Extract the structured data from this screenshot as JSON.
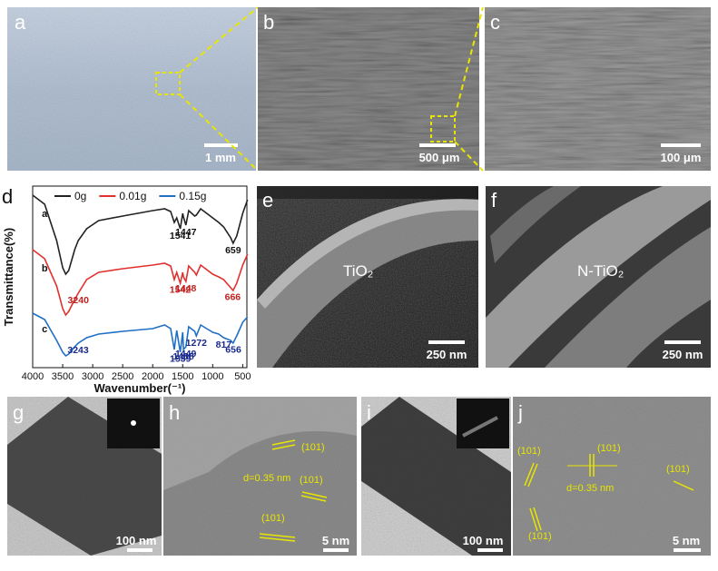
{
  "panels": [
    {
      "letter": "a",
      "scale_bar": "1 mm"
    },
    {
      "letter": "b",
      "scale_bar": "500 μm"
    },
    {
      "letter": "c",
      "scale_bar": "100 μm"
    },
    {
      "letter": "d"
    },
    {
      "letter": "e",
      "label": "TiO₂",
      "scale_bar": "250 nm"
    },
    {
      "letter": "f",
      "label": "N-TiO₂",
      "scale_bar": "250 nm"
    },
    {
      "letter": "g",
      "scale_bar": "100 nm"
    },
    {
      "letter": "h",
      "scale_bar": "5 nm",
      "labels": [
        "(101)",
        "d=0.35 nm",
        "(101)",
        "(101)"
      ]
    },
    {
      "letter": "i",
      "scale_bar": "100 nm"
    },
    {
      "letter": "j",
      "scale_bar": "5 nm",
      "labels": [
        "(101)",
        "(101)",
        "d=0.35 nm",
        "(101)",
        "(101)"
      ]
    }
  ],
  "chart_data": {
    "type": "line",
    "xlabel": "Wavenumber(⁻¹)",
    "ylabel": "Transmittance(%)",
    "xlim": [
      4000,
      430
    ],
    "ylim": [
      0,
      100
    ],
    "xticks": [
      4000,
      3500,
      3000,
      2500,
      2000,
      1500,
      1000,
      500
    ],
    "legend": "top",
    "x": [
      4000,
      3800,
      3600,
      3500,
      3450,
      3400,
      3300,
      3240,
      3100,
      2900,
      2500,
      2000,
      1800,
      1700,
      1640,
      1600,
      1540,
      1500,
      1488,
      1447,
      1400,
      1300,
      1272,
      1200,
      1100,
      1000,
      900,
      817,
      700,
      660,
      600,
      500,
      420
    ],
    "series": [
      {
        "name": "0g",
        "label": "a",
        "color": "#222222",
        "label_color": "#111111",
        "values": [
          95,
          90,
          70,
          55,
          51.5,
          53.5,
          65,
          70,
          76.5,
          81,
          83.5,
          86.5,
          87.5,
          86,
          80,
          82.5,
          76.5,
          85,
          83,
          78.5,
          86.5,
          83.5,
          84,
          87.5,
          85,
          82.5,
          80,
          77.5,
          71.5,
          68.5,
          72.5,
          85,
          92.5
        ],
        "peaks": [
          1541,
          1447,
          659
        ]
      },
      {
        "name": "0.01g",
        "label": "b",
        "color": "#e0312f",
        "label_color": "#c0201e",
        "values": [
          65,
          60,
          45,
          32.5,
          29,
          31,
          37.5,
          41,
          48.5,
          52.5,
          54.5,
          56.5,
          57.5,
          56,
          48.5,
          52.5,
          46.5,
          52.5,
          50,
          47.5,
          56,
          52.5,
          51,
          56.5,
          54,
          51.5,
          50,
          48.5,
          44,
          42.5,
          46.5,
          56.5,
          62.5
        ],
        "peaks": [
          3240,
          1542,
          1448,
          666
        ]
      },
      {
        "name": "0.15g",
        "label": "c",
        "color": "#1f6fc4",
        "label_color": "#1a2a8c",
        "values": [
          30,
          26.5,
          15,
          8.5,
          6.5,
          7.5,
          11.5,
          13.5,
          16.5,
          18.5,
          20,
          21.5,
          23.5,
          21.5,
          10,
          20.5,
          8.5,
          19.5,
          10,
          11.5,
          22.5,
          20,
          17.5,
          23.5,
          21.5,
          19.5,
          18.5,
          16.5,
          15,
          13.5,
          17.5,
          25,
          28
        ],
        "peaks": [
          3243,
          1539,
          1488,
          1449,
          1272,
          817,
          656
        ]
      }
    ]
  }
}
